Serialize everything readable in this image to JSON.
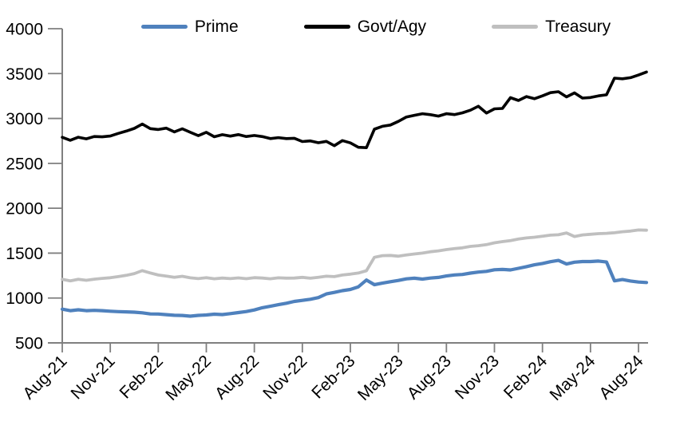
{
  "chart": {
    "title": "",
    "colors": {
      "prime": "#4f81bd",
      "govt_agy": "#000000",
      "treasury": "#bfbfbf",
      "axis": "#7f7f7f"
    }
  },
  "chart_data": {
    "type": "line",
    "title": "",
    "xlabel": "",
    "ylabel": "",
    "ylim": [
      500,
      4000
    ],
    "y_axis_ticks": [
      500,
      1000,
      1500,
      2000,
      2500,
      3000,
      3500,
      4000
    ],
    "x_axis_tick_labels": [
      "Aug-21",
      "Nov-21",
      "Feb-22",
      "May-22",
      "Aug-22",
      "Nov-22",
      "Feb-23",
      "May-23",
      "Aug-23",
      "Nov-23",
      "Feb-24",
      "May-24",
      "Aug-24"
    ],
    "x_tick_interval_months": 3,
    "x_start_month": 0,
    "x_step_months": 0.5,
    "x_range_months": [
      0,
      36.5
    ],
    "grid": false,
    "legend_position": "top",
    "series": [
      {
        "name": "Prime",
        "color": "#4f81bd",
        "jitter": 4,
        "values": [
          872,
          862,
          868,
          860,
          863,
          858,
          855,
          850,
          845,
          838,
          832,
          825,
          818,
          812,
          808,
          802,
          798,
          805,
          812,
          818,
          815,
          825,
          838,
          852,
          868,
          892,
          912,
          928,
          942,
          958,
          972,
          988,
          1005,
          1048,
          1062,
          1078,
          1092,
          1125,
          1198,
          1148,
          1162,
          1182,
          1198,
          1212,
          1218,
          1212,
          1222,
          1232,
          1248,
          1258,
          1265,
          1275,
          1288,
          1298,
          1312,
          1318,
          1315,
          1332,
          1352,
          1372,
          1388,
          1402,
          1422,
          1382,
          1402,
          1405,
          1408,
          1412,
          1402,
          1192,
          1205,
          1192,
          1182,
          1175
        ]
      },
      {
        "name": "Govt/Agy",
        "color": "#000000",
        "jitter": 12,
        "values": [
          2780,
          2768,
          2790,
          2776,
          2800,
          2792,
          2812,
          2838,
          2858,
          2878,
          2930,
          2895,
          2865,
          2885,
          2852,
          2875,
          2848,
          2805,
          2850,
          2790,
          2818,
          2800,
          2822,
          2808,
          2815,
          2798,
          2788,
          2795,
          2778,
          2768,
          2738,
          2755,
          2732,
          2752,
          2695,
          2742,
          2718,
          2680,
          2668,
          2878,
          2902,
          2928,
          2975,
          3012,
          3028,
          3058,
          3042,
          3035,
          3062,
          3048,
          3072,
          3085,
          3135,
          3062,
          3098,
          3112,
          3238,
          3205,
          3252,
          3228,
          3262,
          3280,
          3310,
          3250,
          3295,
          3225,
          3240,
          3255,
          3268,
          3452,
          3442,
          3462,
          3495,
          3525
        ]
      },
      {
        "name": "Treasury",
        "color": "#bfbfbf",
        "jitter": 4,
        "values": [
          1205,
          1195,
          1208,
          1198,
          1210,
          1218,
          1228,
          1240,
          1252,
          1268,
          1302,
          1282,
          1252,
          1242,
          1232,
          1238,
          1225,
          1215,
          1228,
          1212,
          1222,
          1215,
          1225,
          1218,
          1228,
          1222,
          1218,
          1228,
          1222,
          1218,
          1228,
          1222,
          1232,
          1245,
          1238,
          1252,
          1262,
          1278,
          1302,
          1452,
          1468,
          1475,
          1468,
          1478,
          1488,
          1502,
          1515,
          1528,
          1542,
          1552,
          1562,
          1572,
          1582,
          1595,
          1612,
          1628,
          1642,
          1658,
          1672,
          1680,
          1692,
          1698,
          1708,
          1728,
          1688,
          1702,
          1712,
          1718,
          1722,
          1728,
          1738,
          1748,
          1762,
          1758
        ]
      }
    ]
  }
}
